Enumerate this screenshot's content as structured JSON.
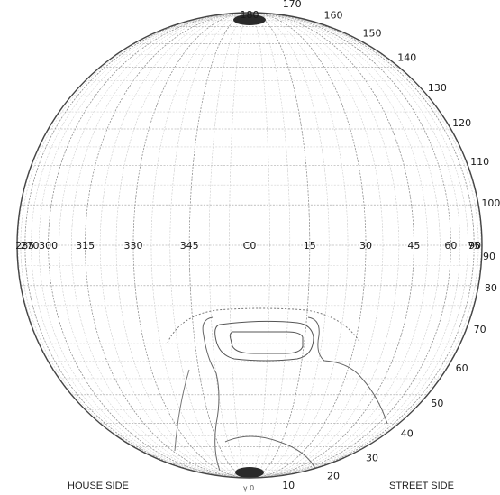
{
  "diagram": {
    "horizontal_angles": [
      "270",
      "285",
      "300",
      "315",
      "330",
      "345",
      "C0",
      "15",
      "30",
      "45",
      "60",
      "75",
      "90"
    ],
    "vertical_angles_right": [
      "10",
      "20",
      "30",
      "40",
      "50",
      "60",
      "70",
      "80",
      "90",
      "100",
      "110",
      "120",
      "130",
      "140",
      "150",
      "160",
      "170",
      "180"
    ],
    "bottom_label": "γ 0",
    "house_side": "HOUSE SIDE",
    "street_side": "STREET SIDE"
  }
}
